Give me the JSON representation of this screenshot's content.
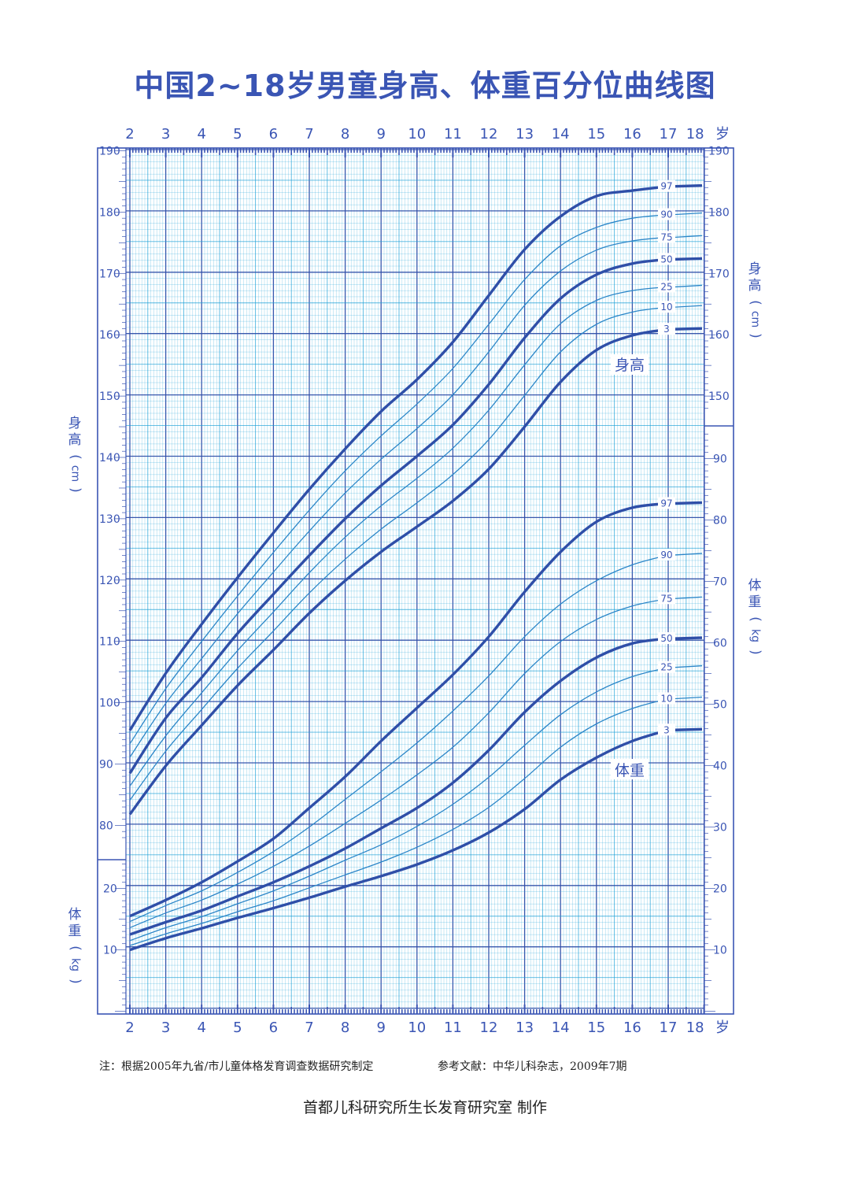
{
  "title": "中国2~18岁男童身高、体重百分位曲线图",
  "note_left": "注：根据2005年九省/市儿童体格发育调查数据研究制定",
  "note_right": "参考文献：中华儿科杂志，2009年7期",
  "credit": "首都儿科研究所生长发育研究室 制作",
  "axis_labels": {
    "height_left": [
      "身",
      "高",
      "(",
      "cm",
      ")"
    ],
    "weight_left": [
      "体",
      "重",
      "(",
      "kg",
      ")"
    ],
    "height_right": [
      "身",
      "高",
      "(",
      "cm",
      ")"
    ],
    "weight_right": [
      "体",
      "重",
      "(",
      "kg",
      ")"
    ],
    "age_unit": "岁"
  },
  "colors": {
    "ink": "#3a55b4",
    "grid": "#1a9fd6",
    "major": "#2f4fa8"
  },
  "chart_data": [
    {
      "type": "line",
      "name_label": "身高",
      "xlabel": "岁",
      "ylabel": "身高（cm）",
      "xlim": [
        2,
        18
      ],
      "ylim": [
        80,
        190
      ],
      "x_ticks": [
        2,
        3,
        4,
        5,
        6,
        7,
        8,
        9,
        10,
        11,
        12,
        13,
        14,
        15,
        16,
        17,
        18
      ],
      "y_ticks_left": [
        80,
        90,
        100,
        110,
        120,
        130,
        140,
        150,
        160,
        170,
        180,
        190
      ],
      "y_ticks_right": [
        150,
        160,
        170,
        180,
        190
      ],
      "x": [
        2,
        3,
        4,
        5,
        6,
        7,
        8,
        9,
        10,
        11,
        12,
        13,
        14,
        15,
        16,
        17
      ],
      "series": [
        {
          "name": "3",
          "values": [
            81.8,
            89.7,
            96.3,
            102.8,
            108.6,
            114.6,
            119.9,
            124.6,
            128.7,
            132.9,
            138.1,
            145.0,
            152.3,
            157.5,
            159.9,
            160.9
          ]
        },
        {
          "name": "10",
          "values": [
            84.1,
            92.1,
            98.9,
            105.6,
            111.7,
            117.9,
            123.4,
            128.3,
            132.6,
            137.2,
            142.9,
            150.1,
            157.2,
            161.7,
            163.7,
            164.5
          ]
        },
        {
          "name": "25",
          "values": [
            86.4,
            94.6,
            101.6,
            108.5,
            114.8,
            121.2,
            127.0,
            132.1,
            136.6,
            141.5,
            147.7,
            155.1,
            161.8,
            165.6,
            167.2,
            167.8
          ]
        },
        {
          "name": "50",
          "values": [
            88.5,
            97.5,
            104.1,
            111.3,
            117.7,
            124.0,
            130.0,
            135.4,
            140.2,
            145.3,
            151.9,
            159.5,
            165.9,
            169.8,
            171.6,
            172.3
          ]
        },
        {
          "name": "75",
          "values": [
            91.1,
            99.9,
            107.2,
            114.5,
            121.3,
            128.0,
            134.2,
            139.7,
            144.7,
            150.2,
            157.2,
            164.8,
            170.4,
            173.8,
            175.3,
            175.9
          ]
        },
        {
          "name": "90",
          "values": [
            93.3,
            102.3,
            110.0,
            117.4,
            124.5,
            131.4,
            137.8,
            143.5,
            148.7,
            154.5,
            161.7,
            169.0,
            174.5,
            177.5,
            179.0,
            179.6
          ]
        },
        {
          "name": "97",
          "values": [
            95.5,
            104.8,
            112.8,
            120.4,
            127.7,
            134.8,
            141.4,
            147.5,
            152.7,
            158.8,
            166.4,
            173.9,
            179.3,
            182.6,
            183.5,
            184.2
          ]
        }
      ]
    },
    {
      "type": "line",
      "name_label": "体重",
      "xlabel": "岁",
      "ylabel": "体重（kg）",
      "xlim": [
        2,
        18
      ],
      "ylim": [
        0,
        90
      ],
      "y_ticks_left": [
        10,
        20
      ],
      "y_ticks_right": [
        10,
        20,
        30,
        40,
        50,
        60,
        70,
        80,
        90
      ],
      "x": [
        2,
        3,
        4,
        5,
        6,
        7,
        8,
        9,
        10,
        11,
        12,
        13,
        14,
        15,
        16,
        17
      ],
      "series": [
        {
          "name": "3",
          "values": [
            10.0,
            11.9,
            13.5,
            15.2,
            16.8,
            18.5,
            20.3,
            22.0,
            23.9,
            26.2,
            29.1,
            32.9,
            37.7,
            41.3,
            44.0,
            45.8
          ]
        },
        {
          "name": "10",
          "values": [
            10.7,
            12.6,
            14.3,
            16.2,
            18.0,
            20.1,
            22.2,
            24.3,
            26.7,
            29.6,
            33.2,
            37.9,
            43.0,
            46.8,
            49.3,
            50.9
          ]
        },
        {
          "name": "25",
          "values": [
            11.5,
            13.6,
            15.4,
            17.5,
            19.6,
            22.0,
            24.6,
            27.1,
            30.1,
            33.7,
            38.1,
            43.3,
            48.3,
            52.0,
            54.5,
            56.0
          ]
        },
        {
          "name": "50",
          "values": [
            12.5,
            14.5,
            16.4,
            18.7,
            21.0,
            23.6,
            26.5,
            29.8,
            33.1,
            37.2,
            42.5,
            48.7,
            53.8,
            57.6,
            59.9,
            60.7
          ]
        },
        {
          "name": "75",
          "values": [
            13.6,
            16.0,
            18.1,
            20.7,
            23.6,
            26.9,
            30.6,
            34.4,
            38.5,
            43.0,
            48.6,
            55.0,
            60.2,
            63.8,
            66.0,
            67.2
          ]
        },
        {
          "name": "90",
          "values": [
            14.6,
            17.2,
            19.6,
            22.6,
            26.0,
            30.0,
            34.5,
            39.0,
            43.7,
            48.9,
            54.6,
            61.0,
            66.3,
            70.1,
            72.7,
            74.3
          ]
        },
        {
          "name": "97",
          "values": [
            15.5,
            18.1,
            21.0,
            24.4,
            28.1,
            33.1,
            38.2,
            44.0,
            49.4,
            54.8,
            61.0,
            68.3,
            74.8,
            79.7,
            82.0,
            82.7
          ]
        }
      ]
    }
  ]
}
